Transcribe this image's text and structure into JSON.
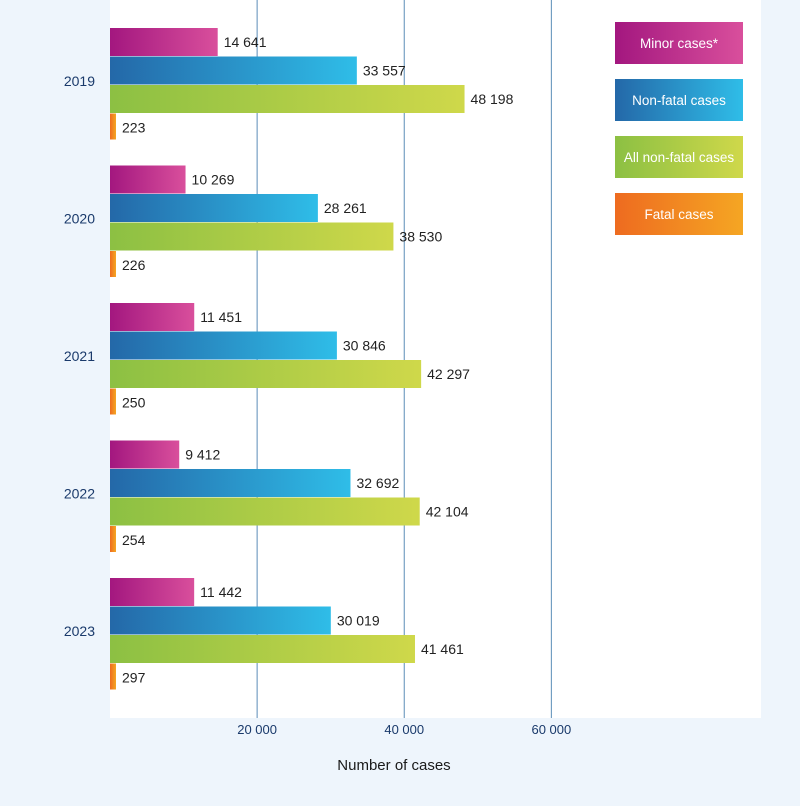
{
  "chart_data": {
    "type": "bar",
    "orientation": "horizontal",
    "categories": [
      "2019",
      "2020",
      "2021",
      "2022",
      "2023"
    ],
    "series": [
      {
        "name": "Minor cases*",
        "values": [
          14641,
          10269,
          11451,
          9412,
          11442
        ],
        "value_labels": [
          "14 641",
          "10 269",
          "11 451",
          "9 412",
          "11 442"
        ],
        "color_start": "#a3177f",
        "color_end": "#d94f9c"
      },
      {
        "name": "Non-fatal cases",
        "values": [
          33557,
          28261,
          30846,
          32692,
          30019
        ],
        "value_labels": [
          "33 557",
          "28 261",
          "30 846",
          "32 692",
          "30 019"
        ],
        "color_start": "#2468a8",
        "color_end": "#2fbde8"
      },
      {
        "name": "All non-fatal cases",
        "values": [
          48198,
          38530,
          42297,
          42104,
          41461
        ],
        "value_labels": [
          "48 198",
          "38 530",
          "42 297",
          "42 104",
          "41 461"
        ],
        "color_start": "#8cc043",
        "color_end": "#cfd84a"
      },
      {
        "name": "Fatal cases",
        "values": [
          223,
          226,
          250,
          254,
          297
        ],
        "value_labels": [
          "223",
          "226",
          "250",
          "254",
          "297"
        ],
        "color_start": "#ee6b20",
        "color_end": "#f5a623"
      }
    ],
    "xlabel": "Number of cases",
    "ylabel": "",
    "xlim": [
      0,
      88500
    ],
    "xticks": [
      20000,
      40000,
      60000
    ],
    "xtick_labels": [
      "20 000",
      "40 000",
      "60 000"
    ],
    "grid": true,
    "legend_position": "top-right",
    "colors": {
      "background": "#eef5fc",
      "plot_area": "#ffffff",
      "gridline": "#5b8db8",
      "category_label": "#1a3a6b",
      "axis_text": "#1a3a6b",
      "value_label": "#222222",
      "legend_text": "#ffffff"
    }
  }
}
